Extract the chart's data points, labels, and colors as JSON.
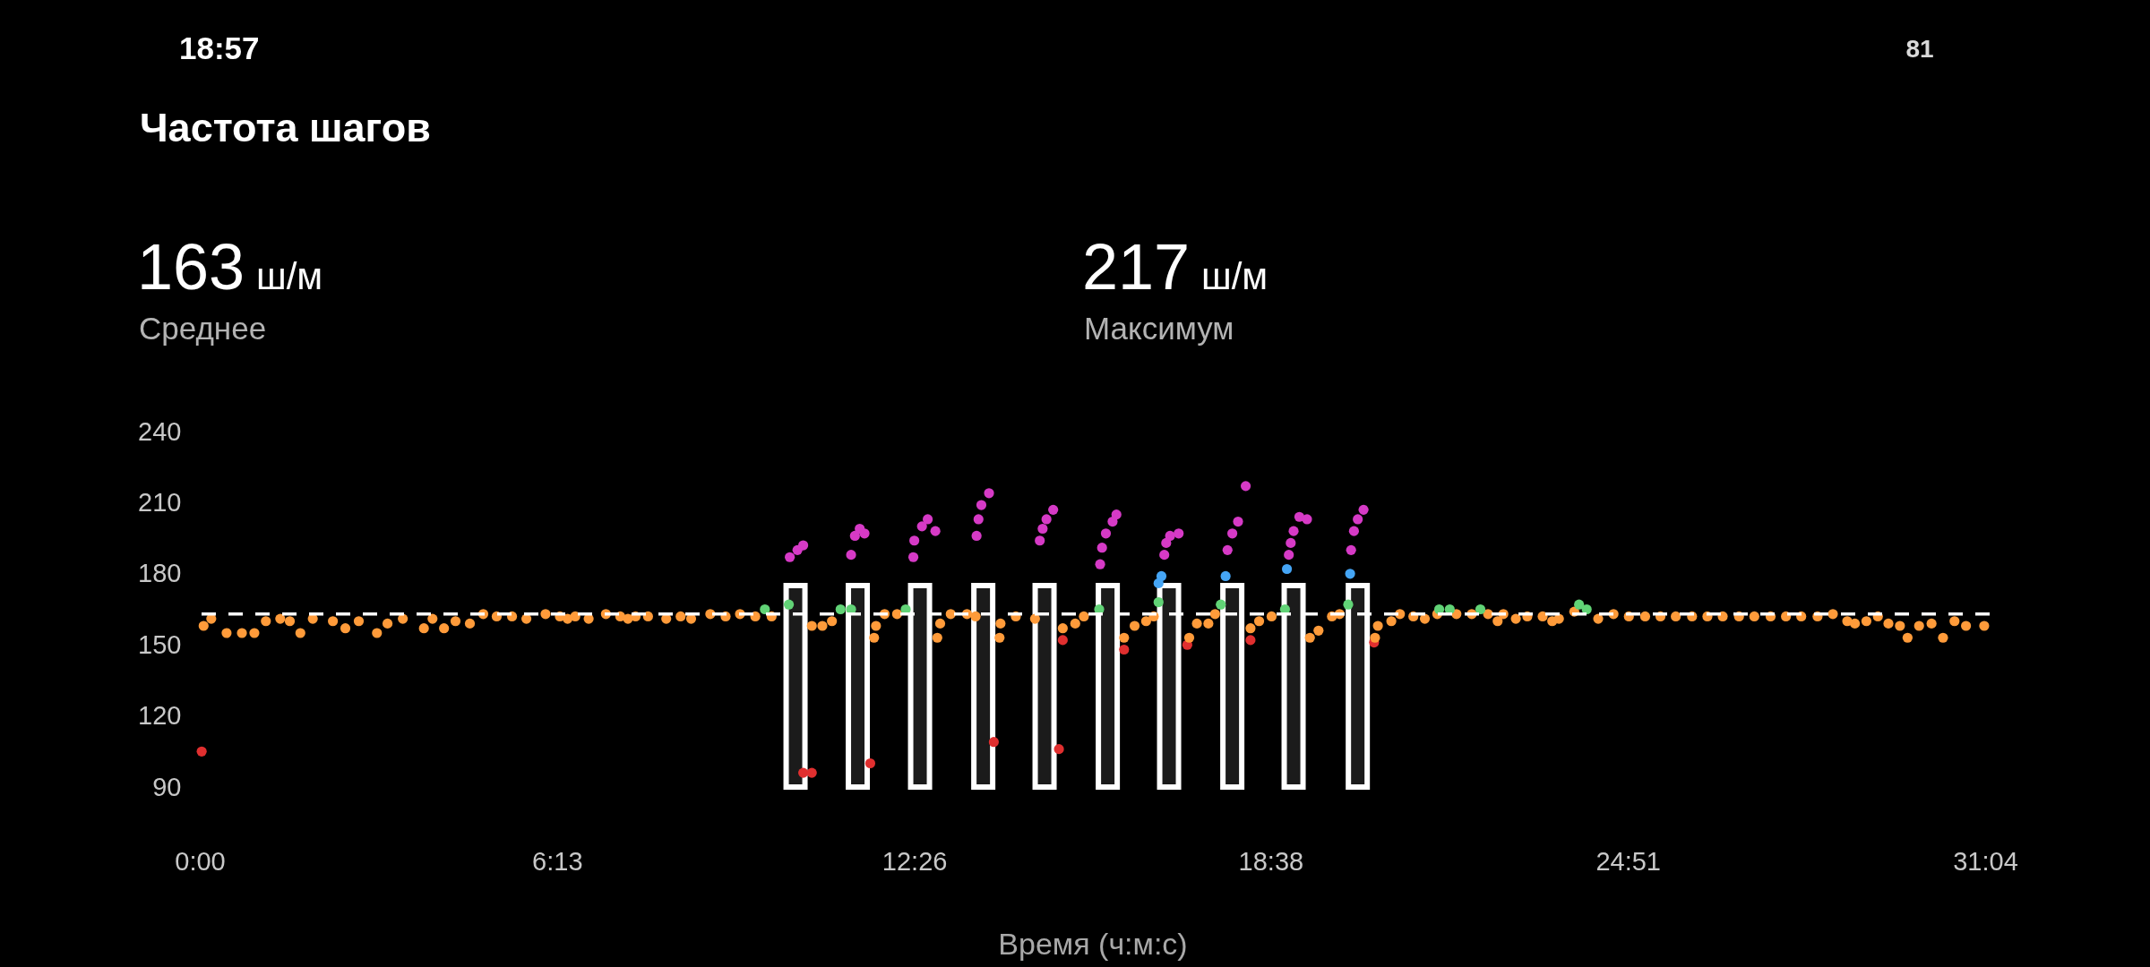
{
  "chart_data": {
    "type": "scatter",
    "title": "Частота шагов",
    "xlabel": "Время (ч:м:с)",
    "annotations": [
      "18:57",
      "81",
      "163",
      "ш/м",
      "Среднее",
      "217",
      "ш/м",
      "Максимум"
    ],
    "xlim": [
      0,
      1864
    ],
    "xticks": [
      {
        "value": 0,
        "label": "0:00"
      },
      {
        "value": 373,
        "label": "6:13"
      },
      {
        "value": 746,
        "label": "12:26"
      },
      {
        "value": 1118,
        "label": "18:38"
      },
      {
        "value": 1491,
        "label": "24:51"
      },
      {
        "value": 1864,
        "label": "31:04"
      }
    ],
    "ylim": [
      90,
      240
    ],
    "yticks": [
      90,
      120,
      150,
      180,
      210,
      240
    ],
    "grid": false,
    "marker": "circle",
    "ref_lines": [
      {
        "axis": "y",
        "value": 163,
        "color": "#ffffff",
        "line_style": "dashed"
      }
    ],
    "series": [
      {
        "type": "bar",
        "color": "#ffffff",
        "x": [
          622,
          687,
          752,
          818,
          882,
          948,
          1012,
          1078,
          1142,
          1209
        ],
        "values": [
          175,
          175,
          175,
          175,
          175,
          175,
          175,
          175,
          175,
          175
        ]
      },
      {
        "color": "#e02f2f",
        "x": [
          2,
          630,
          639,
          700,
          829,
          897,
          901,
          965,
          1031,
          1097,
          1226
        ],
        "values": [
          105,
          96,
          96,
          100,
          109,
          106,
          152,
          148,
          150,
          152,
          151
        ]
      },
      {
        "color": "#ff9b3a",
        "x": [
          4,
          12,
          28,
          44,
          57,
          69,
          84,
          94,
          105,
          118,
          139,
          152,
          166,
          185,
          196,
          212,
          234,
          243,
          255,
          267,
          282,
          296,
          310,
          326,
          341,
          361,
          376,
          384,
          392,
          406,
          424,
          439,
          447,
          455,
          468,
          487,
          502,
          513,
          533,
          549,
          564,
          580,
          597,
          639,
          650,
          660,
          704,
          706,
          715,
          728,
          770,
          773,
          784,
          801,
          810,
          835,
          836,
          852,
          872,
          901,
          914,
          923,
          965,
          976,
          988,
          996,
          1033,
          1041,
          1053,
          1060,
          1097,
          1106,
          1119,
          1159,
          1168,
          1182,
          1190,
          1227,
          1230,
          1244,
          1253,
          1267,
          1279,
          1292,
          1312,
          1328,
          1345,
          1355,
          1361,
          1374,
          1386,
          1402,
          1412,
          1419,
          1435,
          1460,
          1476,
          1492,
          1509,
          1525,
          1541,
          1558,
          1574,
          1590,
          1607,
          1623,
          1640,
          1656,
          1672,
          1689,
          1705,
          1720,
          1728,
          1740,
          1752,
          1763,
          1775,
          1783,
          1795,
          1808,
          1820,
          1832,
          1844,
          1863
        ],
        "values": [
          158,
          161,
          155,
          155,
          155,
          160,
          161,
          160,
          155,
          161,
          160,
          157,
          160,
          155,
          159,
          161,
          157,
          161,
          157,
          160,
          159,
          163,
          162,
          162,
          161,
          163,
          162,
          161,
          162,
          161,
          163,
          162,
          161,
          162,
          162,
          161,
          162,
          161,
          163,
          162,
          163,
          162,
          162,
          158,
          158,
          160,
          153,
          158,
          163,
          163,
          153,
          159,
          163,
          163,
          162,
          153,
          159,
          162,
          161,
          157,
          159,
          162,
          153,
          158,
          160,
          162,
          153,
          159,
          159,
          163,
          157,
          160,
          162,
          153,
          156,
          162,
          163,
          153,
          158,
          160,
          163,
          162,
          161,
          163,
          163,
          163,
          163,
          160,
          163,
          161,
          162,
          162,
          160,
          161,
          164,
          161,
          163,
          162,
          162,
          162,
          162,
          162,
          162,
          162,
          162,
          162,
          162,
          162,
          162,
          162,
          163,
          160,
          159,
          160,
          162,
          159,
          158,
          153,
          158,
          159,
          153,
          160,
          158,
          158
        ]
      },
      {
        "color": "#61d376",
        "x": [
          590,
          615,
          669,
          680,
          737,
          939,
          1001,
          1066,
          1133,
          1199,
          1294,
          1305,
          1337,
          1440,
          1448
        ],
        "values": [
          165,
          167,
          165,
          165,
          165,
          165,
          168,
          167,
          165,
          167,
          165,
          165,
          165,
          167,
          165
        ]
      },
      {
        "color": "#45a5f5",
        "x": [
          1001,
          1004,
          1071,
          1135,
          1201
        ],
        "values": [
          176,
          179,
          179,
          182,
          180
        ]
      },
      {
        "color": "#d63ac6",
        "x": [
          616,
          624,
          630,
          680,
          684,
          689,
          694,
          745,
          746,
          754,
          760,
          768,
          811,
          813,
          816,
          824,
          877,
          880,
          884,
          891,
          940,
          942,
          946,
          953,
          957,
          1007,
          1009,
          1013,
          1022,
          1073,
          1078,
          1084,
          1092,
          1137,
          1139,
          1142,
          1148,
          1156,
          1202,
          1205,
          1209,
          1215
        ],
        "values": [
          187,
          190,
          192,
          188,
          196,
          199,
          197,
          187,
          194,
          200,
          203,
          198,
          196,
          203,
          209,
          214,
          194,
          199,
          203,
          207,
          184,
          191,
          197,
          202,
          205,
          188,
          193,
          196,
          197,
          190,
          197,
          202,
          217,
          188,
          193,
          198,
          204,
          203,
          190,
          198,
          203,
          207
        ]
      }
    ]
  }
}
